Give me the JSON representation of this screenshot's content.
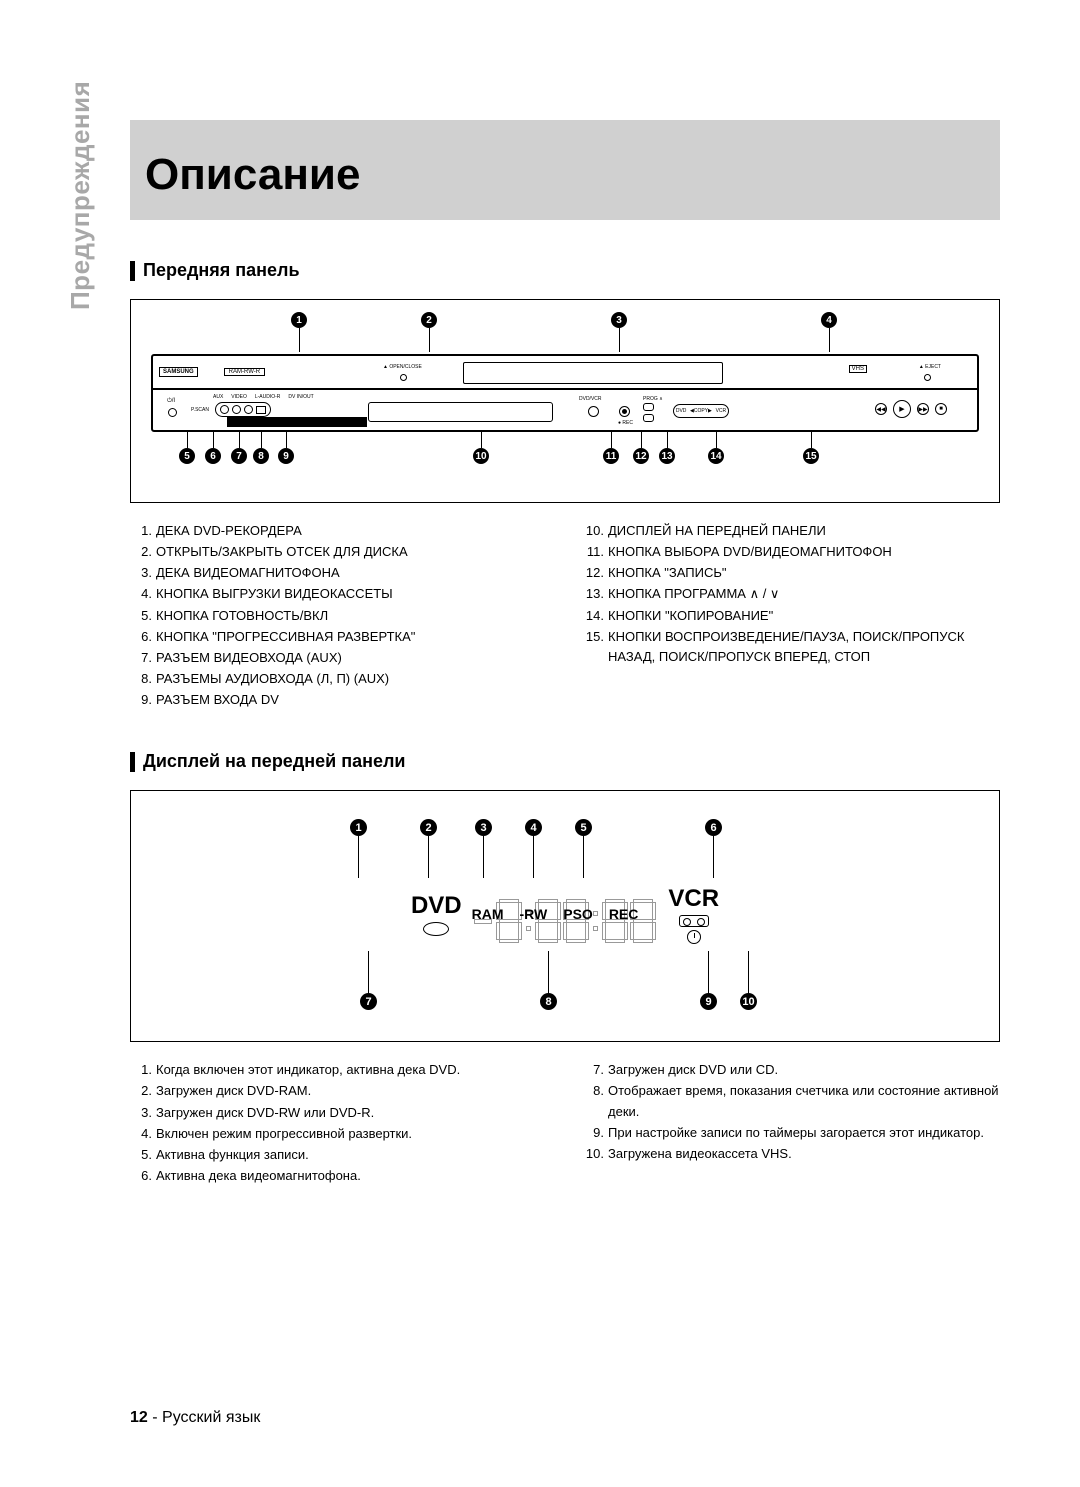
{
  "page": {
    "side_label": "Предупреждения",
    "main_title": "Описание",
    "page_number": "12",
    "language_label": "Русский язык"
  },
  "section1": {
    "heading": "Передняя панель",
    "brand": "SAMSUNG",
    "format_badge": "RAM-RW-R",
    "openclose": "▲ OPEN/CLOSE",
    "vhs": "VHS",
    "eject": "▲ EJECT",
    "power": "⏻/I",
    "pscan": "P.SCAN",
    "jack_labels": {
      "aux": "AUX",
      "video": "VIDEO",
      "laudio": "L-AUDIO-R",
      "dv": "DV IN/OUT"
    },
    "dvdvcr": "DVD/VCR",
    "rec": "● REC",
    "prog_up": "PROG ∧",
    "prog_down": "PROG ∨",
    "copy": {
      "left": "DVD",
      "mid": "◀COPY▶",
      "right": "VCR"
    },
    "top_callouts": [
      "1",
      "2",
      "3",
      "4"
    ],
    "bottom_callouts": [
      "5",
      "6",
      "7",
      "8",
      "9",
      "10",
      "11",
      "12",
      "13",
      "14",
      "15"
    ],
    "list_left": [
      "ДЕКА DVD-РЕКОРДЕРА",
      "ОТКРЫТЬ/ЗАКРЫТЬ ОТСЕК ДЛЯ ДИСКА",
      "ДЕКА ВИДЕОМАГНИТОФОНА",
      "КНОПКА ВЫГРУЗКИ ВИДЕОКАССЕТЫ",
      "КНОПКА ГОТОВНОСТЬ/ВКЛ",
      "КНОПКА \"ПРОГРЕССИВНАЯ РАЗВЕРТКА\"",
      "РАЗЪЕМ ВИДЕОВХОДА (AUX)",
      "РАЗЪЕМЫ АУДИОВХОДА (Л, П) (AUX)",
      "РАЗЪЕМ ВХОДА DV"
    ],
    "list_right": [
      "ДИСПЛЕЙ НА ПЕРЕДНЕЙ ПАНЕЛИ",
      "КНОПКА ВЫБОРА DVD/ВИДЕОМАГНИТОФОН",
      "КНОПКА \"ЗАПИСЬ\"",
      "КНОПКА ПРОГРАММА  ∧ / ∨",
      "КНОПКИ \"КОПИРОВАНИЕ\"",
      "КНОПКИ ВОСПРОИЗВЕДЕНИЕ/ПАУЗА, ПОИСК/ПРОПУСК НАЗАД, ПОИСК/ПРОПУСК ВПЕРЕД, СТОП"
    ],
    "list_right_start": 10
  },
  "section2": {
    "heading": "Дисплей на передней панели",
    "top_callouts": [
      "1",
      "2",
      "3",
      "4",
      "5",
      "6"
    ],
    "bottom_callouts": [
      "7",
      "8",
      "9",
      "10"
    ],
    "dvd_text": "DVD",
    "vcr_text": "VCR",
    "ind_labels": [
      "RAM",
      "-RW",
      "PSO",
      "REC"
    ],
    "list_left": [
      "Когда включен этот индикатор, активна дека DVD.",
      "Загружен диск DVD-RAM.",
      "Загружен диск DVD-RW или DVD-R.",
      "Включен режим прогрессивной развертки.",
      "Активна функция записи.",
      "Активна дека видеомагнитофона."
    ],
    "list_right": [
      "Загружен диск DVD или CD.",
      "Отображает время, показания счетчика или состояние активной деки.",
      "При настройке записи по таймеры загорается этот индикатор.",
      "Загружена видеокассета VHS."
    ],
    "list_right_start": 7
  },
  "colors": {
    "header_band": "#d0d0d0",
    "side_label": "#a8a8a8",
    "text": "#000000",
    "background": "#ffffff"
  }
}
